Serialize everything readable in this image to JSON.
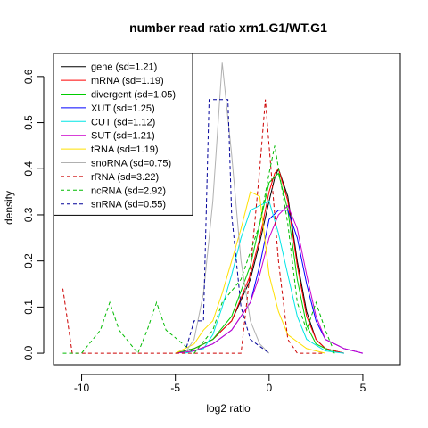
{
  "chart_data": {
    "type": "line",
    "title": "number read ratio xrn1.G1/WT.G1",
    "xlabel": "log2 ratio",
    "ylabel": "density",
    "xlim": [
      -11.5,
      7.0
    ],
    "ylim": [
      -0.025,
      0.65
    ],
    "x_ticks": [
      -10,
      -5,
      0,
      5
    ],
    "x_tick_labels": [
      "-10",
      "-5",
      "0",
      "5"
    ],
    "y_ticks": [
      0.0,
      0.1,
      0.2,
      0.3,
      0.4,
      0.5,
      0.6
    ],
    "y_tick_labels": [
      "0.0",
      "0.1",
      "0.2",
      "0.3",
      "0.4",
      "0.5",
      "0.6"
    ],
    "grid": false,
    "legend_position": "top-left",
    "series": [
      {
        "name": "gene (sd=1.21)",
        "color": "#000000",
        "dash": "solid",
        "points": [
          [
            -5,
            0
          ],
          [
            -4,
            0.01
          ],
          [
            -3,
            0.03
          ],
          [
            -2,
            0.07
          ],
          [
            -1,
            0.16
          ],
          [
            -0.5,
            0.24
          ],
          [
            0,
            0.33
          ],
          [
            0.3,
            0.38
          ],
          [
            0.5,
            0.4
          ],
          [
            1,
            0.34
          ],
          [
            1.5,
            0.2
          ],
          [
            2,
            0.09
          ],
          [
            2.5,
            0.03
          ],
          [
            3,
            0.01
          ],
          [
            4,
            0
          ]
        ]
      },
      {
        "name": "mRNA (sd=1.19)",
        "color": "#ff0000",
        "dash": "solid",
        "points": [
          [
            -5,
            0
          ],
          [
            -4,
            0.01
          ],
          [
            -3,
            0.03
          ],
          [
            -2,
            0.07
          ],
          [
            -1,
            0.17
          ],
          [
            -0.5,
            0.25
          ],
          [
            0,
            0.35
          ],
          [
            0.3,
            0.39
          ],
          [
            0.5,
            0.4
          ],
          [
            1,
            0.33
          ],
          [
            1.5,
            0.19
          ],
          [
            2,
            0.08
          ],
          [
            2.5,
            0.03
          ],
          [
            3,
            0.01
          ],
          [
            4,
            0
          ]
        ]
      },
      {
        "name": "divergent (sd=1.05)",
        "color": "#00cc00",
        "dash": "solid",
        "points": [
          [
            -5,
            0
          ],
          [
            -4,
            0.01
          ],
          [
            -3,
            0.03
          ],
          [
            -2,
            0.08
          ],
          [
            -1,
            0.19
          ],
          [
            -0.5,
            0.28
          ],
          [
            0,
            0.37
          ],
          [
            0.5,
            0.39
          ],
          [
            1,
            0.31
          ],
          [
            1.5,
            0.16
          ],
          [
            2,
            0.06
          ],
          [
            2.5,
            0.02
          ],
          [
            3.5,
            0
          ]
        ]
      },
      {
        "name": "XUT (sd=1.25)",
        "color": "#0000ff",
        "dash": "solid",
        "points": [
          [
            -5,
            0
          ],
          [
            -4,
            0.005
          ],
          [
            -3,
            0.02
          ],
          [
            -2,
            0.05
          ],
          [
            -1,
            0.11
          ],
          [
            -0.5,
            0.19
          ],
          [
            0,
            0.29
          ],
          [
            0.5,
            0.31
          ],
          [
            1,
            0.31
          ],
          [
            1.5,
            0.25
          ],
          [
            2,
            0.15
          ],
          [
            2.5,
            0.07
          ],
          [
            3,
            0.03
          ],
          [
            4,
            0.01
          ],
          [
            5,
            0
          ]
        ]
      },
      {
        "name": "CUT (sd=1.12)",
        "color": "#00e5e5",
        "dash": "solid",
        "points": [
          [
            -4.5,
            0
          ],
          [
            -3.5,
            0.01
          ],
          [
            -3,
            0.04
          ],
          [
            -2.5,
            0.1
          ],
          [
            -2,
            0.17
          ],
          [
            -1.5,
            0.25
          ],
          [
            -1,
            0.31
          ],
          [
            -0.5,
            0.32
          ],
          [
            0,
            0.33
          ],
          [
            0.5,
            0.26
          ],
          [
            1,
            0.17
          ],
          [
            1.5,
            0.08
          ],
          [
            2,
            0.03
          ],
          [
            3,
            0.005
          ],
          [
            4,
            0
          ]
        ]
      },
      {
        "name": "SUT (sd=1.21)",
        "color": "#cc00cc",
        "dash": "solid",
        "points": [
          [
            -5,
            0
          ],
          [
            -4,
            0.005
          ],
          [
            -3,
            0.02
          ],
          [
            -2,
            0.05
          ],
          [
            -1,
            0.11
          ],
          [
            -0.5,
            0.17
          ],
          [
            0,
            0.25
          ],
          [
            0.5,
            0.3
          ],
          [
            1,
            0.32
          ],
          [
            1.5,
            0.27
          ],
          [
            2,
            0.17
          ],
          [
            2.5,
            0.08
          ],
          [
            3,
            0.03
          ],
          [
            4,
            0.01
          ],
          [
            5,
            0
          ]
        ]
      },
      {
        "name": "tRNA (sd=1.19)",
        "color": "#ffe000",
        "dash": "solid",
        "points": [
          [
            -5,
            0
          ],
          [
            -4.5,
            0.01
          ],
          [
            -4,
            0.02
          ],
          [
            -3.5,
            0.05
          ],
          [
            -3,
            0.07
          ],
          [
            -2.5,
            0.13
          ],
          [
            -2,
            0.2
          ],
          [
            -1.5,
            0.27
          ],
          [
            -1,
            0.35
          ],
          [
            -0.5,
            0.34
          ],
          [
            0,
            0.17
          ],
          [
            0.5,
            0.09
          ],
          [
            1,
            0.04
          ],
          [
            2,
            0.01
          ],
          [
            3,
            0
          ]
        ]
      },
      {
        "name": "snoRNA (sd=0.75)",
        "color": "#b0b0b0",
        "dash": "solid",
        "points": [
          [
            -4.5,
            0
          ],
          [
            -4,
            0.03
          ],
          [
            -3.5,
            0.13
          ],
          [
            -3,
            0.33
          ],
          [
            -2.5,
            0.63
          ],
          [
            -2,
            0.43
          ],
          [
            -1.5,
            0.2
          ],
          [
            -1,
            0.07
          ],
          [
            -0.5,
            0.02
          ],
          [
            0,
            0
          ]
        ]
      },
      {
        "name": "rRNA (sd=3.22)",
        "color": "#cc0000",
        "dash": "dashed",
        "points": [
          [
            -11,
            0.14
          ],
          [
            -10.5,
            0
          ],
          [
            -1.5,
            0
          ],
          [
            -1,
            0.18
          ],
          [
            -0.5,
            0.4
          ],
          [
            -0.2,
            0.55
          ],
          [
            0.5,
            0.2
          ],
          [
            1,
            0.03
          ],
          [
            1.5,
            0
          ],
          [
            3,
            0
          ]
        ]
      },
      {
        "name": "ncRNA (sd=2.92)",
        "color": "#00bb00",
        "dash": "dashed",
        "points": [
          [
            -11,
            0
          ],
          [
            -10,
            0
          ],
          [
            -9,
            0.05
          ],
          [
            -8.5,
            0.11
          ],
          [
            -8,
            0.05
          ],
          [
            -7,
            0
          ],
          [
            -6.5,
            0.05
          ],
          [
            -6,
            0.11
          ],
          [
            -5.5,
            0.05
          ],
          [
            -4,
            0
          ],
          [
            -3,
            0.05
          ],
          [
            -2.5,
            0.11
          ],
          [
            -1.5,
            0.16
          ],
          [
            -0.5,
            0.28
          ],
          [
            0,
            0.39
          ],
          [
            0.3,
            0.45
          ],
          [
            1,
            0.28
          ],
          [
            1.5,
            0.11
          ],
          [
            2,
            0.05
          ],
          [
            2.5,
            0.11
          ],
          [
            3,
            0.05
          ],
          [
            3.5,
            0
          ]
        ]
      },
      {
        "name": "snRNA (sd=0.55)",
        "color": "#000099",
        "dash": "dashed",
        "points": [
          [
            -4.5,
            0
          ],
          [
            -4,
            0.07
          ],
          [
            -3.5,
            0.07
          ],
          [
            -3.2,
            0.55
          ],
          [
            -2.2,
            0.55
          ],
          [
            -2,
            0.3
          ],
          [
            -1.5,
            0.1
          ],
          [
            -1,
            0.03
          ],
          [
            0,
            0
          ]
        ]
      }
    ]
  }
}
